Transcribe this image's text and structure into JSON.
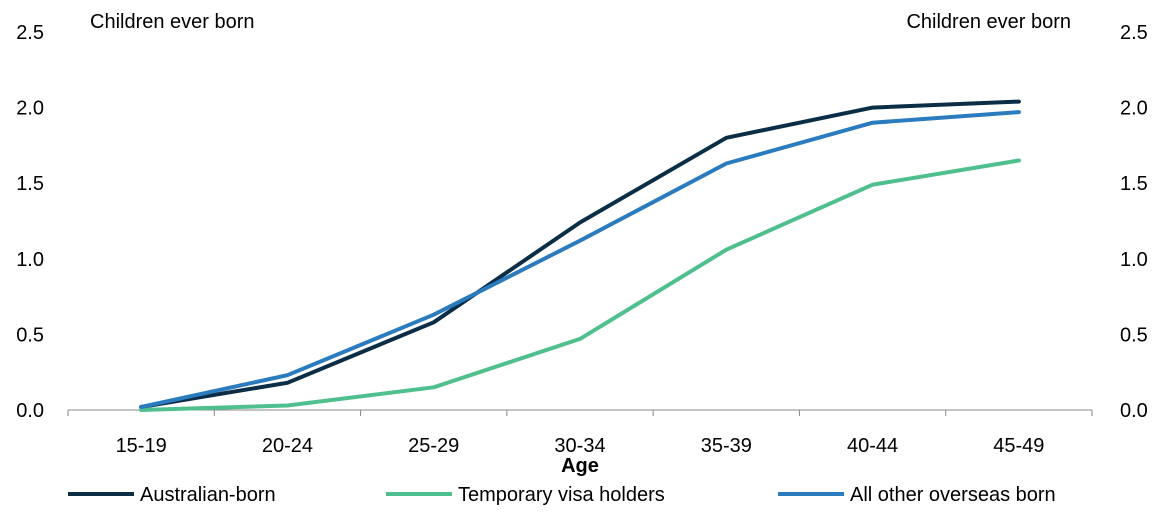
{
  "chart_data": {
    "type": "line",
    "left_axis_title": "Children ever born",
    "right_axis_title": "Children ever born",
    "xlabel": "Age",
    "categories": [
      "15-19",
      "20-24",
      "25-29",
      "30-34",
      "35-39",
      "40-44",
      "45-49"
    ],
    "ylim": [
      0,
      2.5
    ],
    "y_ticks": [
      "0.0",
      "0.5",
      "1.0",
      "1.5",
      "2.0",
      "2.5"
    ],
    "legend_position": "bottom",
    "grid": false,
    "series": [
      {
        "name": "Australian-born",
        "color": "#0b2d45",
        "values": [
          0.02,
          0.18,
          0.58,
          1.24,
          1.8,
          2.0,
          2.04
        ]
      },
      {
        "name": "Temporary visa holders",
        "color": "#4fc08d",
        "values": [
          0.0,
          0.03,
          0.15,
          0.47,
          1.06,
          1.49,
          1.65
        ]
      },
      {
        "name": "All other overseas born",
        "color": "#2b7bbf",
        "values": [
          0.02,
          0.23,
          0.63,
          1.12,
          1.63,
          1.9,
          1.97
        ]
      }
    ]
  }
}
